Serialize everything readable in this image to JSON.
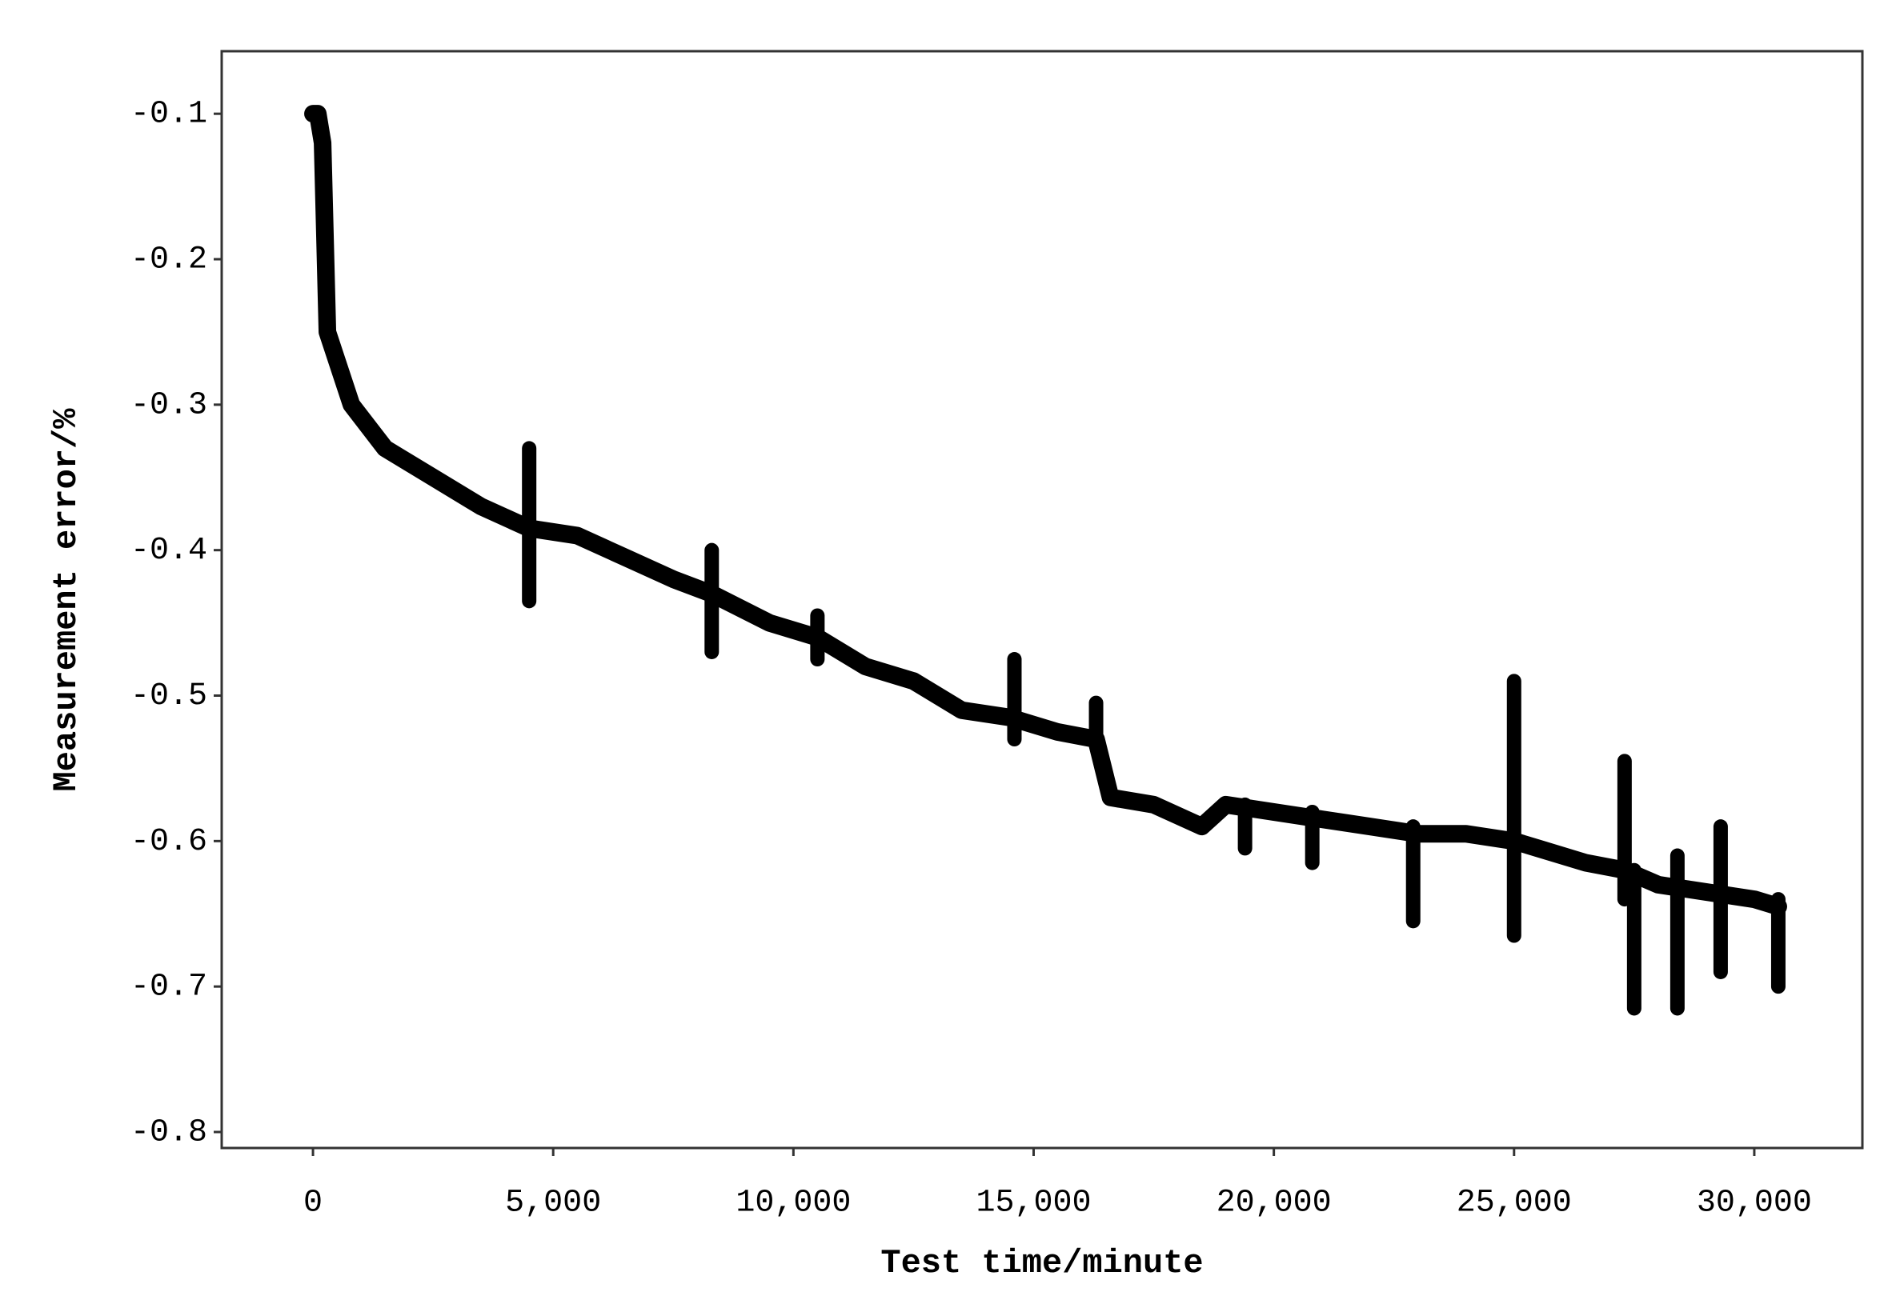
{
  "chart_data": {
    "type": "line",
    "x_label": "Test time/minute",
    "y_label": "Measurement error/%",
    "color": "#000000",
    "xlim": [
      -1900,
      32250
    ],
    "ylim": [
      -0.811,
      -0.057
    ],
    "xticks": [
      0,
      {
        "value": 5000,
        "label": "5,000"
      },
      {
        "value": 10000,
        "label": "10,000"
      },
      {
        "value": 15000,
        "label": "15,000"
      },
      {
        "value": 20000,
        "label": "20,000"
      },
      {
        "value": 25000,
        "label": "25,000"
      },
      {
        "value": 30000,
        "label": "30,000"
      }
    ],
    "yticks": [
      -0.1,
      -0.2,
      -0.3,
      -0.4,
      -0.5,
      -0.6,
      -0.7,
      -0.8
    ],
    "x": [
      0,
      100,
      200,
      300,
      500,
      800,
      1500,
      2500,
      3500,
      4500,
      5500,
      6500,
      7500,
      8300,
      9500,
      10500,
      11500,
      12500,
      13500,
      14500,
      15500,
      16300,
      16600,
      17500,
      18500,
      19000,
      20000,
      21000,
      22000,
      23000,
      24000,
      25000,
      25500,
      26500,
      27300,
      28000,
      29000,
      30000,
      30500
    ],
    "values": [
      -0.1,
      -0.1,
      -0.12,
      -0.25,
      -0.27,
      -0.3,
      -0.33,
      -0.35,
      -0.37,
      -0.385,
      -0.39,
      -0.405,
      -0.42,
      -0.43,
      -0.45,
      -0.46,
      -0.48,
      -0.49,
      -0.51,
      -0.515,
      -0.525,
      -0.53,
      -0.57,
      -0.575,
      -0.59,
      -0.575,
      -0.58,
      -0.585,
      -0.59,
      -0.595,
      -0.595,
      -0.6,
      -0.605,
      -0.615,
      -0.62,
      -0.63,
      -0.635,
      -0.64,
      -0.645
    ],
    "spikes": {
      "x": [
        4500,
        8300,
        10500,
        14600,
        16300,
        19400,
        20800,
        22900,
        25000,
        27300,
        27500,
        28400,
        29300,
        30500
      ],
      "low": [
        -0.435,
        -0.47,
        -0.475,
        -0.53,
        -0.53,
        -0.605,
        -0.615,
        -0.655,
        -0.665,
        -0.64,
        -0.715,
        -0.715,
        -0.69,
        -0.7
      ],
      "high": [
        -0.33,
        -0.4,
        -0.445,
        -0.475,
        -0.505,
        -0.575,
        -0.58,
        -0.59,
        -0.49,
        -0.545,
        -0.62,
        -0.61,
        -0.59,
        -0.64
      ]
    }
  }
}
